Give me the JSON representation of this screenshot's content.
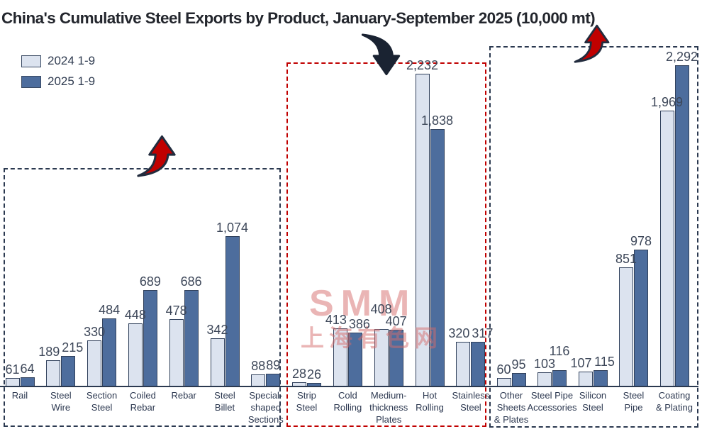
{
  "title": "China's Cumulative Steel Exports by Product, January-September 2025 (10,000 mt)",
  "legend": {
    "items": [
      {
        "label": "2024 1-9",
        "color": "#dce3ef"
      },
      {
        "label": "2025 1-9",
        "color": "#4d6d9d"
      }
    ]
  },
  "watermark": {
    "line1": "SMM",
    "line2": "上海有色网"
  },
  "chart_data": {
    "type": "bar",
    "title": "China's Cumulative Steel Exports by Product, January-September 2025 (10,000 mt)",
    "unit": "10,000 mt",
    "series": [
      "2024 1-9",
      "2025 1-9"
    ],
    "colors": {
      "series_2024": "#dce3ef",
      "series_2025": "#4d6d9d",
      "bar_outline": "#31415c",
      "box_dark": "#2b3950",
      "box_red": "#c00000",
      "arrow_red": "#c00000",
      "arrow_black": "#1a2332"
    },
    "legend_position": "top-left",
    "grid": false,
    "ylabel": "",
    "xlabel": "",
    "groups": [
      {
        "trend": "up",
        "box_style": "dark-dashed",
        "categories": [
          {
            "label": "Rail",
            "lines": [
              "Rail"
            ],
            "values": [
              61,
              64
            ]
          },
          {
            "label": "Steel Wire",
            "lines": [
              "Steel",
              "Wire"
            ],
            "values": [
              189,
              215
            ]
          },
          {
            "label": "Section Steel",
            "lines": [
              "Section",
              "Steel"
            ],
            "values": [
              330,
              484
            ]
          },
          {
            "label": "Coiled Rebar",
            "lines": [
              "Coiled",
              "Rebar"
            ],
            "values": [
              448,
              689
            ]
          },
          {
            "label": "Rebar",
            "lines": [
              "Rebar"
            ],
            "values": [
              478,
              686
            ]
          },
          {
            "label": "Steel Billet",
            "lines": [
              "Steel",
              "Billet"
            ],
            "values": [
              342,
              1074
            ]
          },
          {
            "label": "Special-shaped Sections",
            "lines": [
              "Special-",
              "shaped",
              "Sections"
            ],
            "values": [
              88,
              89
            ]
          }
        ]
      },
      {
        "trend": "down",
        "box_style": "red-dashed",
        "categories": [
          {
            "label": "Strip Steel",
            "lines": [
              "Strip",
              "Steel"
            ],
            "values": [
              28,
              26
            ]
          },
          {
            "label": "Cold Rolling",
            "lines": [
              "Cold",
              "Rolling"
            ],
            "values": [
              413,
              386
            ]
          },
          {
            "label": "Medium-thickness Plates",
            "lines": [
              "Medium-",
              "thickness",
              "Plates"
            ],
            "values": [
              408,
              407
            ],
            "label_dy": [
              -16,
              0
            ]
          },
          {
            "label": "Hot Rolling",
            "lines": [
              "Hot",
              "Rolling"
            ],
            "values": [
              2232,
              1838
            ]
          },
          {
            "label": "Stainless Steel",
            "lines": [
              "Stainless",
              "Steel"
            ],
            "values": [
              320,
              317
            ]
          }
        ]
      },
      {
        "trend": "up",
        "box_style": "dark-dashed",
        "categories": [
          {
            "label": "Other Sheets & Plates",
            "lines": [
              "Other",
              "Sheets",
              "& Plates"
            ],
            "values": [
              60,
              95
            ]
          },
          {
            "label": "Steel Pipe Accessories",
            "lines": [
              "Steel Pipe",
              "Accessories"
            ],
            "values": [
              103,
              116
            ],
            "label_dy": [
              0,
              -15
            ]
          },
          {
            "label": "Silicon Steel",
            "lines": [
              "Silicon",
              "Steel"
            ],
            "values": [
              107,
              115
            ]
          },
          {
            "label": "Steel Pipe",
            "lines": [
              "Steel",
              "Pipe"
            ],
            "values": [
              851,
              978
            ]
          },
          {
            "label": "Coating & Plating",
            "lines": [
              "Coating",
              "& Plating"
            ],
            "values": [
              1969,
              2292
            ]
          }
        ]
      }
    ]
  }
}
